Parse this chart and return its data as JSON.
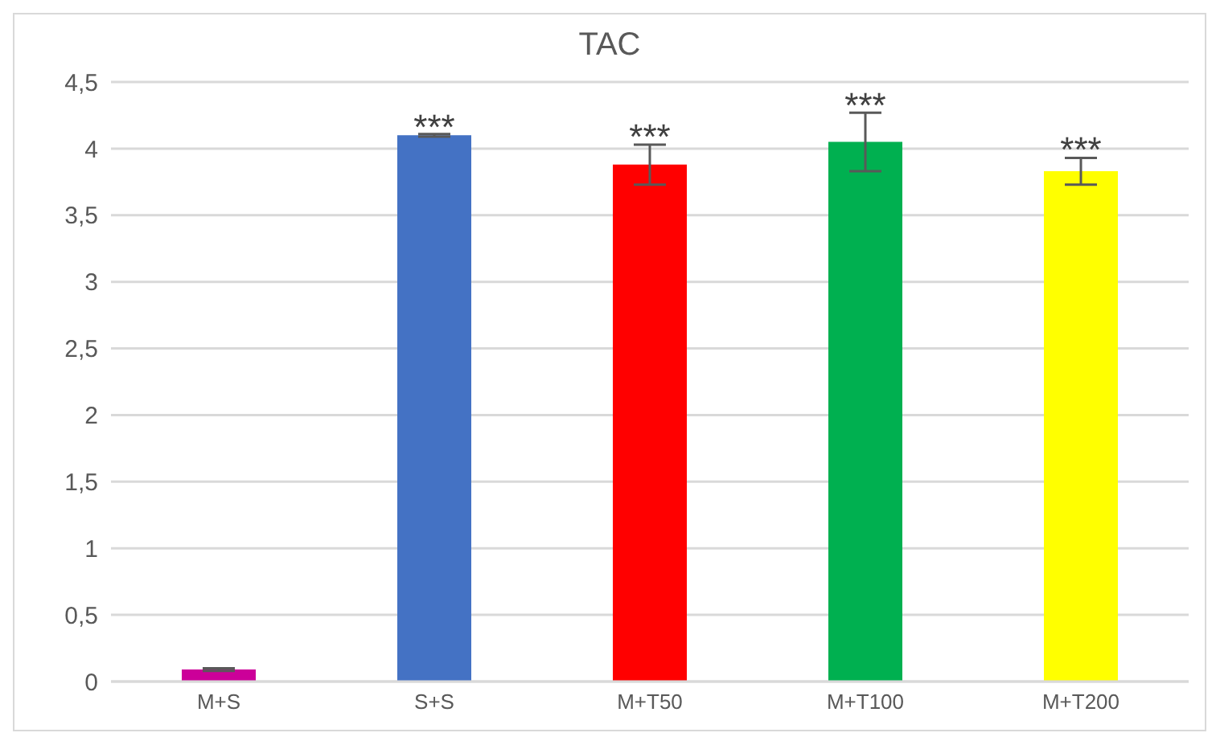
{
  "chart_data": {
    "type": "bar",
    "title": "TAC",
    "categories": [
      "M+S",
      "S+S",
      "M+T50",
      "M+T100",
      "M+T200"
    ],
    "values": [
      0.09,
      4.1,
      3.88,
      4.05,
      3.83
    ],
    "errors": [
      0.01,
      0.01,
      0.15,
      0.22,
      0.1
    ],
    "colors": [
      "#cc0099",
      "#4472c4",
      "#ff0000",
      "#00b050",
      "#ffff00"
    ],
    "ylim": [
      0,
      4.5
    ],
    "yticks": [
      0,
      {
        "value": 0.5,
        "label": "0,5"
      },
      1,
      {
        "value": 1.5,
        "label": "1,5"
      },
      2,
      {
        "value": 2.5,
        "label": "2,5"
      },
      3,
      {
        "value": 3.5,
        "label": "3,5"
      },
      4,
      {
        "value": 4.5,
        "label": "4,5"
      }
    ],
    "grid": "y",
    "legend": false,
    "annotations": [
      {
        "text": "***",
        "x": "S+S",
        "y": 4.12
      },
      {
        "text": "***",
        "x": "M+T50",
        "y": 4.05
      },
      {
        "text": "***",
        "x": "M+T100",
        "y": 4.28
      },
      {
        "text": "***",
        "x": "M+T200",
        "y": 3.95
      }
    ]
  }
}
